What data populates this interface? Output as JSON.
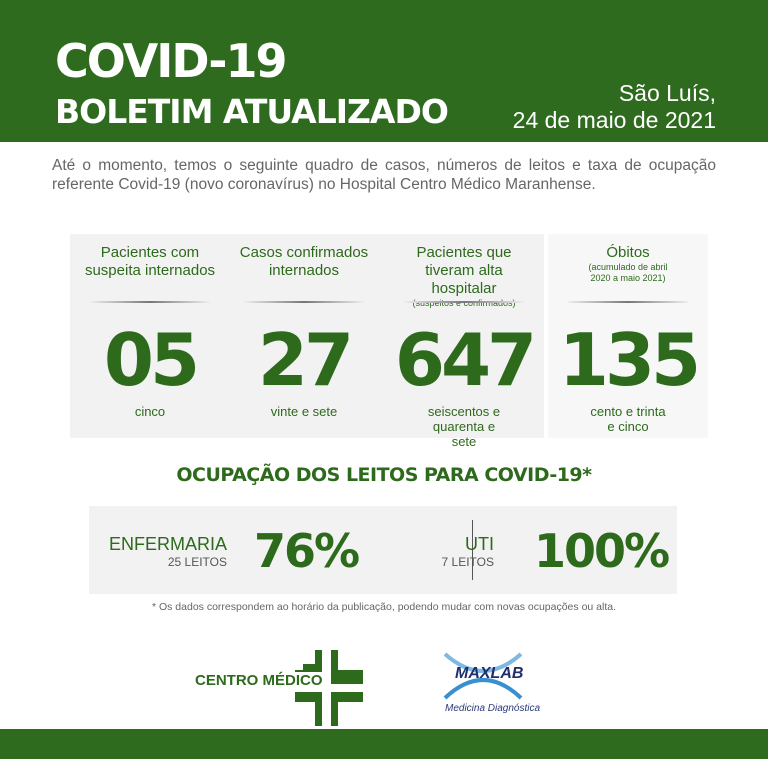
{
  "header": {
    "title": "COVID-19",
    "subtitle": "BOLETIM ATUALIZADO",
    "city": "São Luís,",
    "date": "24 de maio de 2021"
  },
  "intro": "Até o momento, temos o seguinte quadro de casos, números de leitos e taxa de ocupação referente Covid-19 (novo coronavírus) no Hospital Centro Médico Maranhense.",
  "cards": [
    {
      "title": "Pacientes com suspeita internados",
      "sub": "",
      "value": "05",
      "words": "cinco"
    },
    {
      "title": "Casos confirmados internados",
      "sub": "",
      "value": "27",
      "words": "vinte e sete"
    },
    {
      "title": "Pacientes que tiveram alta hospitalar",
      "sub": "(suspeitos e confirmados)",
      "value": "647",
      "words": "seiscentos e quarenta e sete"
    },
    {
      "title": "Óbitos",
      "sub": "(acumulado de abril 2020 a maio 2021)",
      "value": "135",
      "words": "cento e trinta e cinco"
    }
  ],
  "occupancy": {
    "title": "OCUPAÇÃO DOS LEITOS PARA COVID-19*",
    "ward": {
      "label": "ENFERMARIA",
      "beds": "25 LEITOS",
      "percent": "76%"
    },
    "icu": {
      "label": "UTI",
      "beds": "7 LEITOS",
      "percent": "100%"
    }
  },
  "note": "* Os dados correspondem ao horário da publicação, podendo mudar com novas ocupações ou alta.",
  "logos": {
    "centro": "CENTRO MÉDICO",
    "maxlab": "MAXLAB",
    "maxlab_sub": "Medicina Diagnóstica"
  },
  "colors": {
    "green": "#2f6b1f",
    "text_green": "#2d6a1c"
  }
}
